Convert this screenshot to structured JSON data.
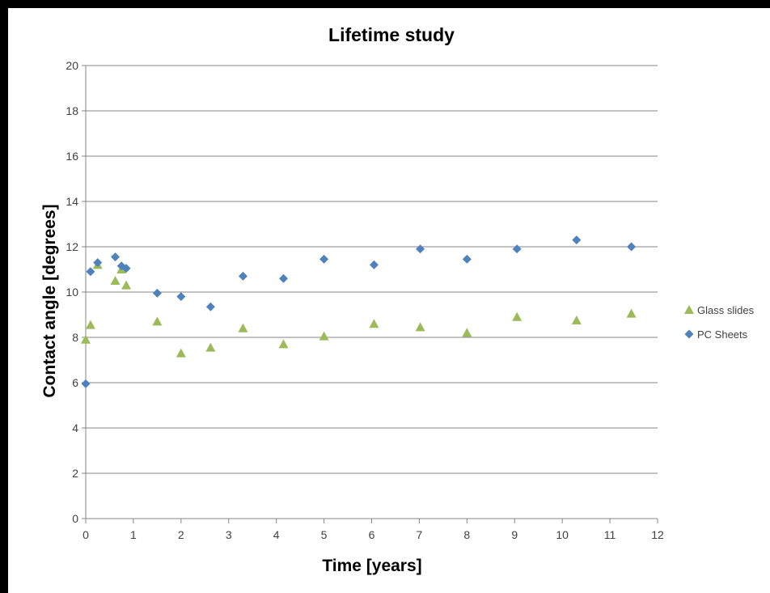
{
  "chart_data": {
    "type": "scatter",
    "title": "Lifetime study",
    "xlabel": "Time [years]",
    "ylabel": "Contact angle [degrees]",
    "xlim": [
      0,
      12
    ],
    "ylim": [
      0,
      20
    ],
    "x_ticks": [
      0,
      1,
      2,
      3,
      4,
      5,
      6,
      7,
      8,
      9,
      10,
      11,
      12
    ],
    "y_ticks": [
      0,
      2,
      4,
      6,
      8,
      10,
      12,
      14,
      16,
      18,
      20
    ],
    "grid": "horizontal",
    "legend_position": "right",
    "series": [
      {
        "name": "Glass slides",
        "marker": "triangle",
        "color": "#9BBB59",
        "points": [
          [
            0,
            7.9
          ],
          [
            0.1,
            8.55
          ],
          [
            0.25,
            11.2
          ],
          [
            0.62,
            10.5
          ],
          [
            0.75,
            11.0
          ],
          [
            0.85,
            10.3
          ],
          [
            1.5,
            8.7
          ],
          [
            2.0,
            7.3
          ],
          [
            2.62,
            7.55
          ],
          [
            3.3,
            8.4
          ],
          [
            4.15,
            7.7
          ],
          [
            5.0,
            8.05
          ],
          [
            6.05,
            8.6
          ],
          [
            7.02,
            8.45
          ],
          [
            8.0,
            8.2
          ],
          [
            9.05,
            8.9
          ],
          [
            10.3,
            8.75
          ],
          [
            11.45,
            9.05
          ]
        ]
      },
      {
        "name": "PC Sheets",
        "marker": "diamond",
        "color": "#4F81BD",
        "points": [
          [
            0,
            5.95
          ],
          [
            0.1,
            10.9
          ],
          [
            0.25,
            11.3
          ],
          [
            0.62,
            11.55
          ],
          [
            0.75,
            11.15
          ],
          [
            0.85,
            11.05
          ],
          [
            1.5,
            9.95
          ],
          [
            2.0,
            9.8
          ],
          [
            2.62,
            9.35
          ],
          [
            3.3,
            10.7
          ],
          [
            4.15,
            10.6
          ],
          [
            5.0,
            11.45
          ],
          [
            6.05,
            11.2
          ],
          [
            7.02,
            11.9
          ],
          [
            8.0,
            11.45
          ],
          [
            9.05,
            11.9
          ],
          [
            10.3,
            12.3
          ],
          [
            11.45,
            12.0
          ]
        ]
      }
    ]
  }
}
